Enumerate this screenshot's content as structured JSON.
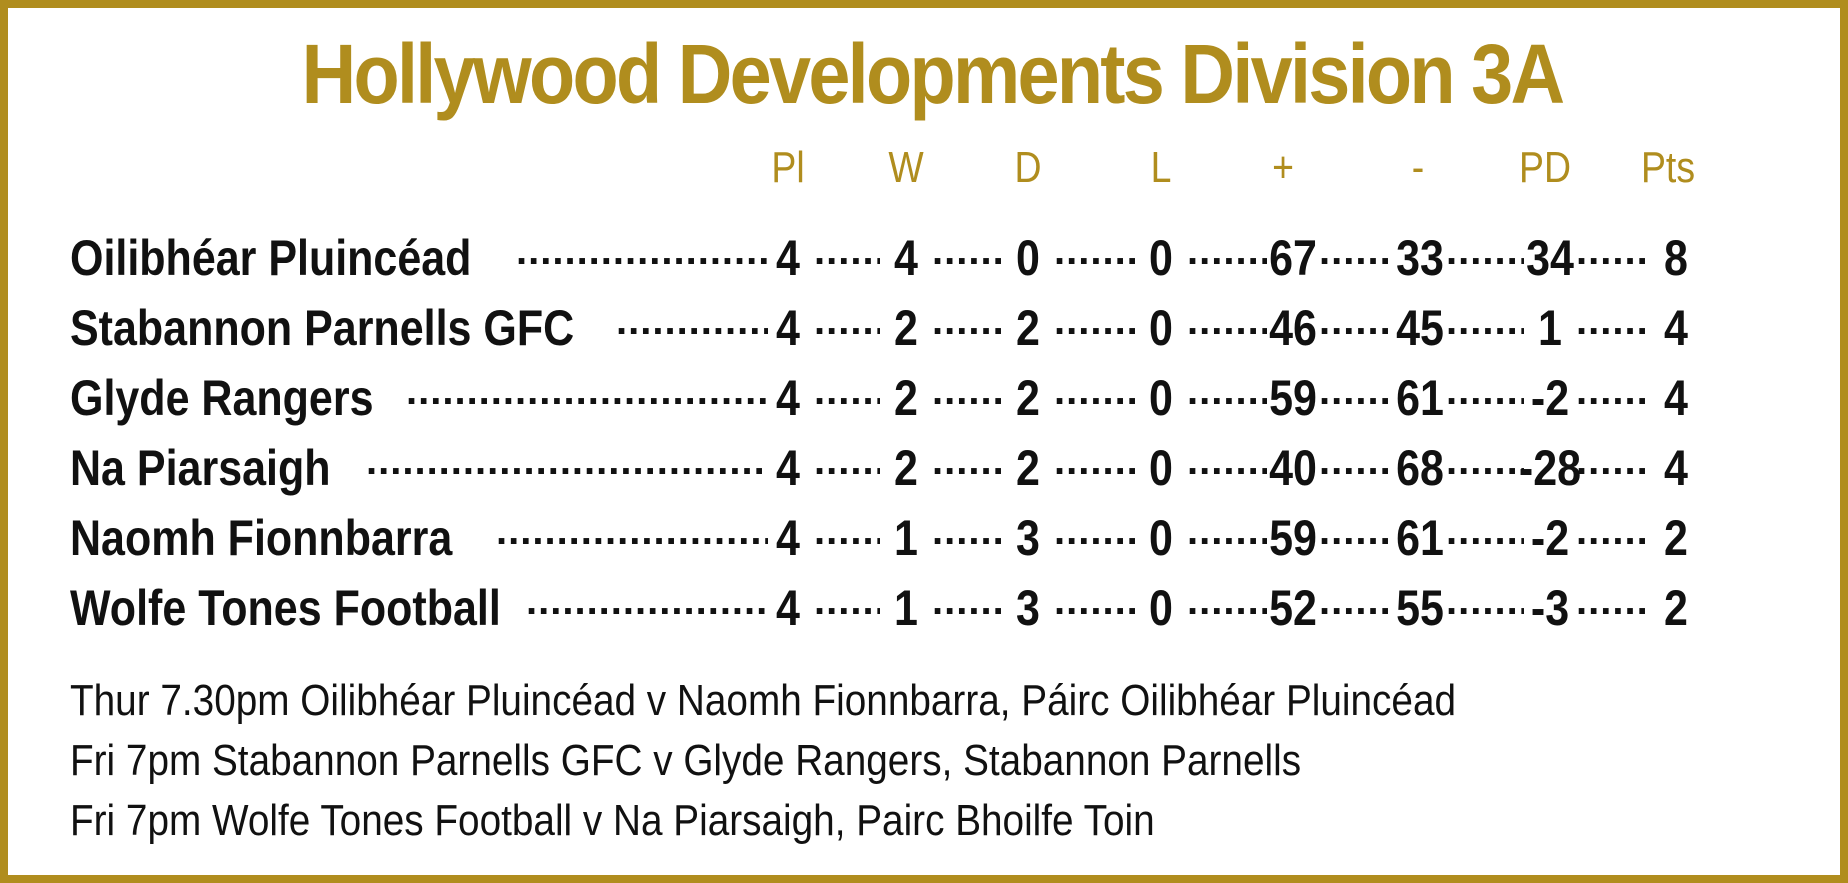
{
  "title": "Hollywood Developments Division 3A",
  "columns": [
    "Pl",
    "W",
    "D",
    "L",
    "+",
    "-",
    "PD",
    "Pts"
  ],
  "teams": [
    {
      "name": "Oilibhéar Pluincéad",
      "pl": "4",
      "w": "4",
      "d": "0",
      "l": "0",
      "plus": "67",
      "minus": "33",
      "pd": "34",
      "pts": "8"
    },
    {
      "name": "Stabannon Parnells GFC",
      "pl": "4",
      "w": "2",
      "d": "2",
      "l": "0",
      "plus": "46",
      "minus": "45",
      "pd": "1",
      "pts": "4"
    },
    {
      "name": "Glyde Rangers",
      "pl": "4",
      "w": "2",
      "d": "2",
      "l": "0",
      "plus": "59",
      "minus": "61",
      "pd": "-2",
      "pts": "4"
    },
    {
      "name": "Na Piarsaigh",
      "pl": "4",
      "w": "2",
      "d": "2",
      "l": "0",
      "plus": "40",
      "minus": "68",
      "pd": "-28",
      "pts": "4"
    },
    {
      "name": "Naomh Fionnbarra",
      "pl": "4",
      "w": "1",
      "d": "3",
      "l": "0",
      "plus": "59",
      "minus": "61",
      "pd": "-2",
      "pts": "2"
    },
    {
      "name": "Wolfe Tones Football",
      "pl": "4",
      "w": "1",
      "d": "3",
      "l": "0",
      "plus": "52",
      "minus": "55",
      "pd": "-3",
      "pts": "2"
    }
  ],
  "fixtures": [
    "Thur 7.30pm Oilibhéar Pluincéad v Naomh Fionnbarra, Páirc Oilibhéar Pluincéad",
    "Fri 7pm Stabannon Parnells GFC v Glyde Rangers, Stabannon Parnells",
    "Fri 7pm Wolfe Tones Football v Na Piarsaigh, Pairc Bhoilfe Toin"
  ],
  "colors": {
    "accent": "#b08d1e",
    "text": "#111111"
  }
}
